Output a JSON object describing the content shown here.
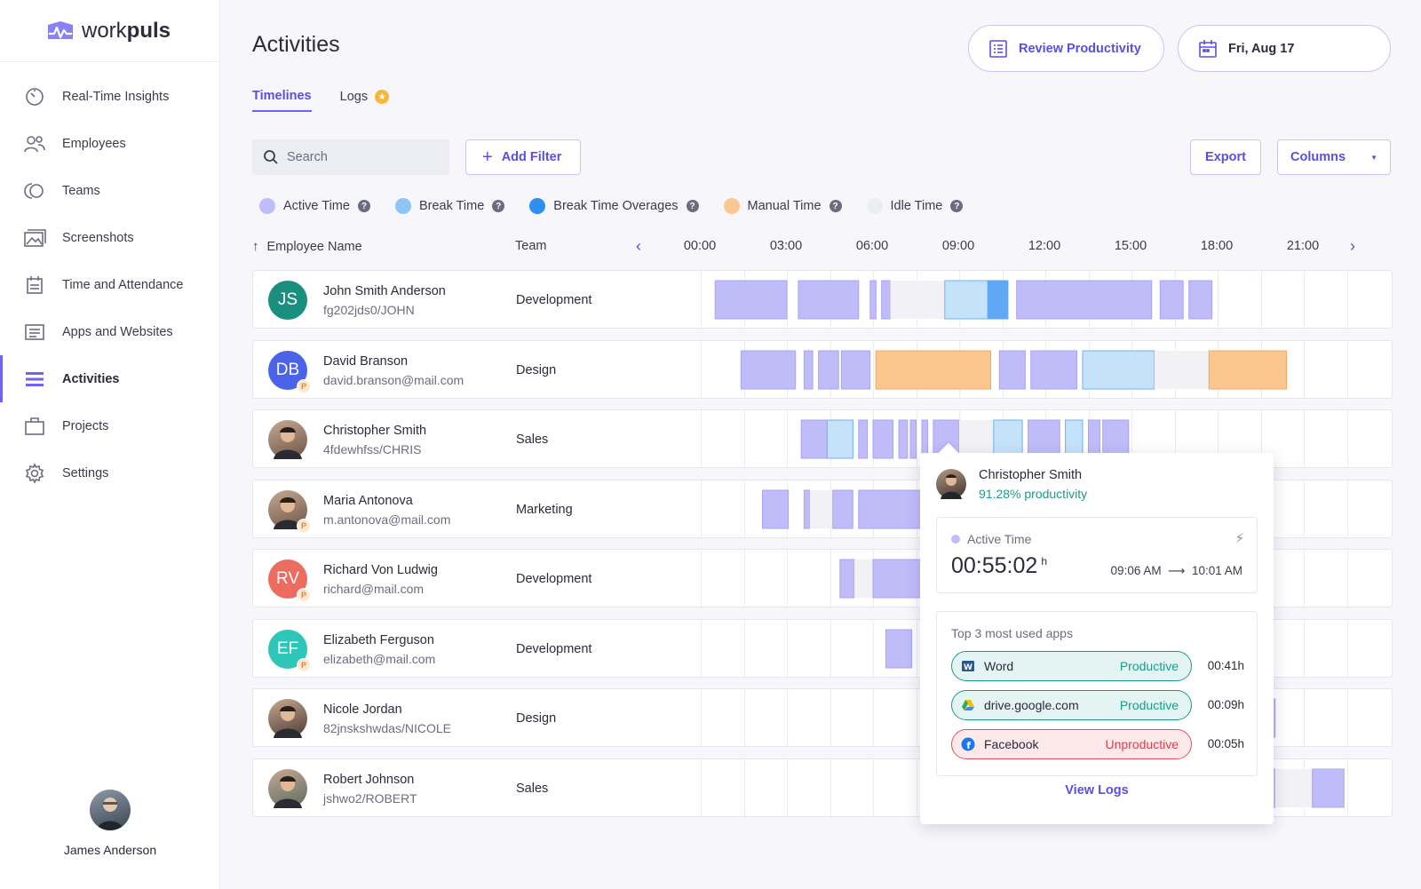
{
  "brand": {
    "name_light": "work",
    "name_bold": "puls"
  },
  "sidebar": {
    "items": [
      {
        "label": "Real-Time Insights",
        "icon": "gauge-icon",
        "active": false
      },
      {
        "label": "Employees",
        "icon": "users-icon",
        "active": false
      },
      {
        "label": "Teams",
        "icon": "teams-icon",
        "active": false
      },
      {
        "label": "Screenshots",
        "icon": "images-icon",
        "active": false
      },
      {
        "label": "Time and Attendance",
        "icon": "calendar-icon",
        "active": false
      },
      {
        "label": "Apps and Websites",
        "icon": "browser-icon",
        "active": false
      },
      {
        "label": "Activities",
        "icon": "list-icon",
        "active": true
      },
      {
        "label": "Projects",
        "icon": "briefcase-icon",
        "active": false
      },
      {
        "label": "Settings",
        "icon": "gear-icon",
        "active": false
      }
    ],
    "user": {
      "name": "James Anderson"
    }
  },
  "header": {
    "title": "Activities",
    "review_label": "Review Productivity",
    "date_label": "Fri, Aug 17"
  },
  "tabs": [
    {
      "label": "Timelines",
      "active": true
    },
    {
      "label": "Logs",
      "active": false,
      "badge": "star-icon"
    }
  ],
  "toolbar": {
    "search_placeholder": "Search",
    "add_filter": "Add Filter",
    "export": "Export",
    "columns": "Columns"
  },
  "legend": [
    {
      "label": "Active Time",
      "color": "#c0bcfa"
    },
    {
      "label": "Break Time",
      "color": "#8ec5f8"
    },
    {
      "label": "Break Time Overages",
      "color": "#2f8ff0"
    },
    {
      "label": "Manual Time",
      "color": "#fbc78f"
    },
    {
      "label": "Idle Time",
      "color": "#ececf3"
    }
  ],
  "colors": {
    "active": "#c0bcfa",
    "active_border": "#a9a3f6",
    "break": "#c5e2fb",
    "break_border": "#6fb1f2",
    "overage": "#5fa8f3",
    "manual": "#fbc78f",
    "manual_border": "#f0a85f",
    "idle": "#f1f1f6",
    "accent": "#5a4fe0"
  },
  "table": {
    "col_employee": "Employee Name",
    "col_team": "Team",
    "hours": [
      "00:00",
      "03:00",
      "06:00",
      "09:00",
      "12:00",
      "15:00",
      "18:00",
      "21:00"
    ],
    "rows": [
      {
        "name": "John Smith Anderson",
        "sub": "fg202jds0/JOHN",
        "team": "Development",
        "initials": "JS",
        "avatar_color": "#1a8f80",
        "photo": false,
        "badge": "",
        "segments": [
          [
            "active",
            0.5,
            3.0
          ],
          [
            "active",
            3.4,
            5.5
          ],
          [
            "active",
            5.9,
            6.1
          ],
          [
            "active",
            6.3,
            6.6
          ],
          [
            "idle",
            6.6,
            8.5
          ],
          [
            "break",
            8.5,
            10.0
          ],
          [
            "overage",
            10.0,
            10.7
          ],
          [
            "active",
            11.0,
            15.7
          ],
          [
            "active",
            16.0,
            16.8
          ],
          [
            "active",
            17.0,
            17.8
          ]
        ]
      },
      {
        "name": "David Branson",
        "sub": "david.branson@mail.com",
        "team": "Design",
        "initials": "DB",
        "avatar_color": "#4a63e8",
        "photo": false,
        "badge": "P",
        "segments": [
          [
            "active",
            1.4,
            3.3
          ],
          [
            "active",
            3.6,
            3.9
          ],
          [
            "active",
            4.1,
            4.8
          ],
          [
            "active",
            4.9,
            5.9
          ],
          [
            "manual",
            6.1,
            10.1
          ],
          [
            "active",
            10.4,
            11.3
          ],
          [
            "active",
            11.5,
            13.1
          ],
          [
            "break",
            13.3,
            15.8
          ],
          [
            "idle",
            15.8,
            17.7
          ],
          [
            "manual",
            17.7,
            20.4
          ]
        ]
      },
      {
        "name": "Christopher Smith",
        "sub": "4fdewhfss/CHRIS",
        "team": "Sales",
        "initials": "CS",
        "avatar_color": "#6b5448",
        "photo": true,
        "badge": "",
        "segments": [
          [
            "active",
            3.5,
            4.4
          ],
          [
            "break",
            4.4,
            5.3
          ],
          [
            "active",
            5.5,
            5.8
          ],
          [
            "active",
            6.0,
            6.7
          ],
          [
            "active",
            6.9,
            7.2
          ],
          [
            "active",
            7.3,
            7.5
          ],
          [
            "active",
            7.7,
            7.9
          ],
          [
            "active",
            8.1,
            9.0
          ],
          [
            "idle",
            9.0,
            10.2
          ],
          [
            "break",
            10.2,
            11.2
          ],
          [
            "active",
            11.4,
            12.5
          ],
          [
            "break",
            12.7,
            13.3
          ],
          [
            "active",
            13.5,
            13.9
          ],
          [
            "active",
            14.0,
            14.9
          ]
        ]
      },
      {
        "name": "Maria Antonova",
        "sub": "m.antonova@mail.com",
        "team": "Marketing",
        "initials": "MA",
        "avatar_color": "#6b5448",
        "photo": true,
        "badge": "P",
        "segments": [
          [
            "active",
            2.15,
            3.05
          ],
          [
            "active",
            3.6,
            3.8
          ],
          [
            "idle",
            3.8,
            4.6
          ],
          [
            "active",
            4.6,
            5.3
          ],
          [
            "active",
            5.5,
            8.0
          ]
        ]
      },
      {
        "name": "Richard Von Ludwig",
        "sub": "richard@mail.com",
        "team": "Development",
        "initials": "RV",
        "avatar_color": "#ee6b5f",
        "photo": false,
        "badge": "P",
        "segments": [
          [
            "active",
            4.85,
            5.35
          ],
          [
            "idle",
            5.35,
            6.0
          ],
          [
            "active",
            6.0,
            8.0
          ]
        ]
      },
      {
        "name": "Elizabeth Ferguson",
        "sub": "elizabeth@mail.com",
        "team": "Development",
        "initials": "EF",
        "avatar_color": "#2ec6b8",
        "photo": false,
        "badge": "P",
        "segments": [
          [
            "active",
            6.45,
            7.35
          ]
        ]
      },
      {
        "name": "Nicole Jordan",
        "sub": "82jnskshwdas/NICOLE",
        "team": "Design",
        "initials": "NJ",
        "avatar_color": "#4a3a33",
        "photo": true,
        "badge": "",
        "segments": [
          [
            "active",
            19.8,
            20.0
          ]
        ]
      },
      {
        "name": "Robert Johnson",
        "sub": "jshwo2/ROBERT",
        "team": "Sales",
        "initials": "RJ",
        "avatar_color": "#5a6b62",
        "photo": true,
        "badge": "",
        "segments": [
          [
            "active",
            19.8,
            20.0
          ],
          [
            "idle",
            20.0,
            21.3
          ],
          [
            "active",
            21.3,
            22.4
          ]
        ]
      }
    ]
  },
  "popup": {
    "name": "Christopher Smith",
    "productivity": "91.28% productivity",
    "active_label": "Active Time",
    "active_value": "00:55:02",
    "active_unit": "h",
    "start": "09:06 AM",
    "end": "10:01 AM",
    "top_title": "Top 3 most used apps",
    "apps": [
      {
        "name": "Word",
        "status": "Productive",
        "time": "00:41h",
        "kind": "prod",
        "icon": "word-icon"
      },
      {
        "name": "drive.google.com",
        "status": "Productive",
        "time": "00:09h",
        "kind": "prod",
        "icon": "google-drive-icon"
      },
      {
        "name": "Facebook",
        "status": "Unproductive",
        "time": "00:05h",
        "kind": "unprod",
        "icon": "facebook-icon"
      }
    ],
    "view_logs": "View Logs"
  }
}
